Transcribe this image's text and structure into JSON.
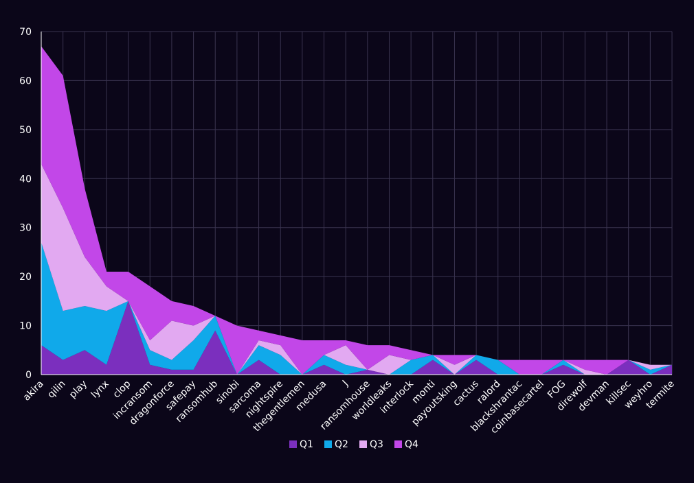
{
  "chart_data": {
    "type": "area",
    "stacked": true,
    "categories": [
      "akira",
      "qilin",
      "play",
      "lynx",
      "clop",
      "incransom",
      "dragonforce",
      "safepay",
      "ransomhub",
      "sinobi",
      "sarcoma",
      "nightspire",
      "thegentlemen",
      "medusa",
      "J",
      "ransomhouse",
      "worldleaks",
      "interlock",
      "monti",
      "payoutsking",
      "cactus",
      "ralord",
      "blackshrantac",
      "coinbasecartel",
      "FOG",
      "direwolf",
      "devman",
      "killsec",
      "weyhro",
      "termite"
    ],
    "series": [
      {
        "name": "Q1",
        "color": "#7b2fbe",
        "values": [
          6,
          3,
          5,
          2,
          15,
          2,
          1,
          1,
          9,
          0,
          3,
          0,
          0,
          2,
          0,
          1,
          0,
          0,
          3,
          0,
          3,
          0,
          0,
          0,
          2,
          0,
          0,
          3,
          0,
          2
        ]
      },
      {
        "name": "Q2",
        "color": "#10a9ea",
        "values": [
          21,
          10,
          9,
          11,
          0,
          3,
          2,
          6,
          3,
          0,
          3,
          4,
          0,
          2,
          2,
          0,
          0,
          3,
          1,
          0,
          1,
          3,
          0,
          0,
          1,
          0,
          0,
          0,
          1,
          0
        ]
      },
      {
        "name": "Q3",
        "color": "#e2a9f1",
        "values": [
          16,
          21,
          10,
          5,
          0,
          2,
          8,
          3,
          0,
          0,
          1,
          2,
          0,
          0,
          4,
          0,
          4,
          0,
          0,
          2,
          0,
          0,
          0,
          0,
          0,
          1,
          0,
          0,
          1,
          0
        ]
      },
      {
        "name": "Q4",
        "color": "#c247e8",
        "values": [
          24,
          27,
          14,
          3,
          6,
          11,
          4,
          4,
          0,
          10,
          2,
          2,
          7,
          3,
          1,
          5,
          2,
          2,
          0,
          2,
          0,
          0,
          3,
          3,
          0,
          2,
          3,
          0,
          0,
          0
        ]
      }
    ],
    "ylim": [
      0,
      70
    ],
    "yticks": [
      0,
      10,
      20,
      30,
      40,
      50,
      60,
      70
    ],
    "grid": true,
    "legend": "bottom"
  }
}
